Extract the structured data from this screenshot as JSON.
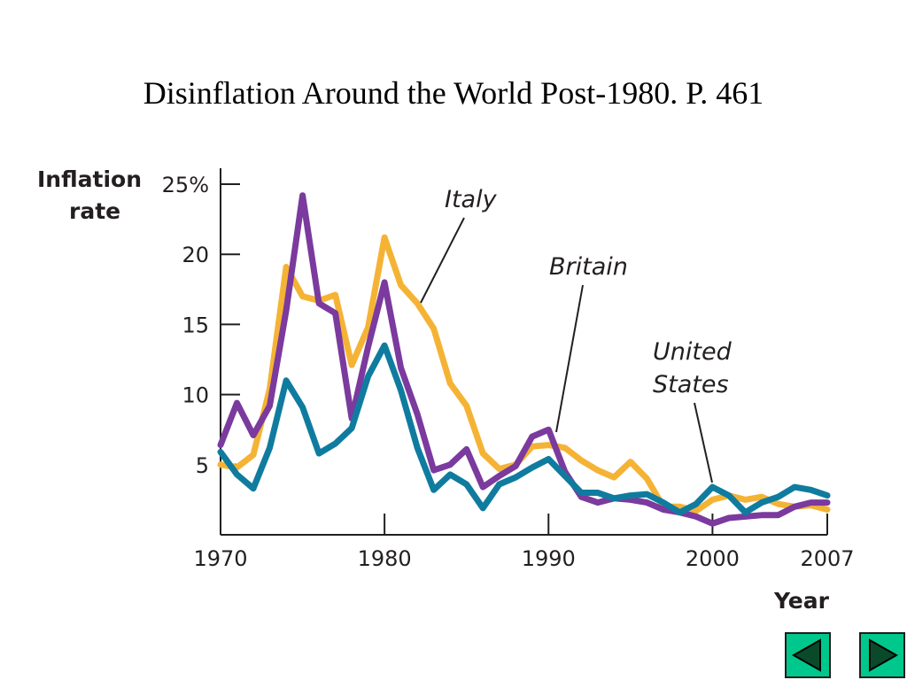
{
  "slide": {
    "title": "Disinflation Around the World Post-1980.  P. 461"
  },
  "nav": {
    "prev_icon": "triangle-left-icon",
    "next_icon": "triangle-right-icon",
    "button_color": "#00c78c"
  },
  "chart_data": {
    "type": "line",
    "title": "",
    "ylabel_line1": "Inflation",
    "ylabel_line2": "rate",
    "xlabel": "Year",
    "xlim": [
      1970,
      2007
    ],
    "ylim": [
      0,
      25
    ],
    "xticks": [
      {
        "value": 1970,
        "label": "1970"
      },
      {
        "value": 1980,
        "label": "1980"
      },
      {
        "value": 1990,
        "label": "1990"
      },
      {
        "value": 2000,
        "label": "2000"
      },
      {
        "value": 2007,
        "label": "2007"
      }
    ],
    "yticks": [
      {
        "value": 5,
        "label": "5"
      },
      {
        "value": 10,
        "label": "10"
      },
      {
        "value": 15,
        "label": "15"
      },
      {
        "value": 20,
        "label": "20"
      },
      {
        "value": 25,
        "label": "25%"
      }
    ],
    "grid": false,
    "legend": "none",
    "x": [
      1970,
      1971,
      1972,
      1973,
      1974,
      1975,
      1976,
      1977,
      1978,
      1979,
      1980,
      1981,
      1982,
      1983,
      1984,
      1985,
      1986,
      1987,
      1988,
      1989,
      1990,
      1991,
      1992,
      1993,
      1994,
      1995,
      1996,
      1997,
      1998,
      1999,
      2000,
      2001,
      2002,
      2003,
      2004,
      2005,
      2006,
      2007
    ],
    "series": [
      {
        "name": "Italy",
        "color": "#f5b335",
        "values": [
          5.0,
          4.8,
          5.7,
          10.4,
          19.1,
          17.0,
          16.7,
          17.1,
          12.1,
          14.8,
          21.2,
          17.8,
          16.5,
          14.7,
          10.8,
          9.2,
          5.8,
          4.7,
          5.0,
          6.3,
          6.4,
          6.2,
          5.3,
          4.6,
          4.1,
          5.2,
          4.0,
          2.0,
          2.0,
          1.7,
          2.5,
          2.8,
          2.5,
          2.7,
          2.2,
          2.0,
          2.1,
          1.8
        ]
      },
      {
        "name": "Britain",
        "color": "#7b3a9e",
        "values": [
          6.4,
          9.4,
          7.1,
          9.2,
          16.0,
          24.2,
          16.5,
          15.8,
          8.3,
          13.4,
          18.0,
          11.9,
          8.6,
          4.6,
          5.0,
          6.1,
          3.4,
          4.2,
          4.9,
          7.0,
          7.5,
          4.5,
          2.7,
          2.3,
          2.6,
          2.5,
          2.3,
          1.8,
          1.6,
          1.3,
          0.8,
          1.2,
          1.3,
          1.4,
          1.4,
          2.0,
          2.3,
          2.3
        ]
      },
      {
        "name": "United States",
        "name_line1": "United",
        "name_line2": "States",
        "color": "#0f7c9f",
        "values": [
          5.9,
          4.3,
          3.3,
          6.2,
          11.0,
          9.1,
          5.8,
          6.5,
          7.6,
          11.3,
          13.5,
          10.3,
          6.2,
          3.2,
          4.3,
          3.6,
          1.9,
          3.6,
          4.1,
          4.8,
          5.4,
          4.2,
          3.0,
          3.0,
          2.6,
          2.8,
          2.9,
          2.3,
          1.6,
          2.2,
          3.4,
          2.8,
          1.6,
          2.3,
          2.7,
          3.4,
          3.2,
          2.8
        ]
      }
    ]
  }
}
